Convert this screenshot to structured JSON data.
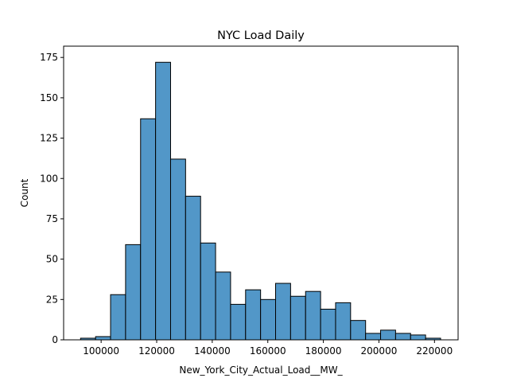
{
  "chart_data": {
    "type": "bar",
    "title": "NYC Load Daily",
    "xlabel": "New_York_City_Actual_Load__MW_",
    "ylabel": "Count",
    "xlim": [
      86500,
      228500
    ],
    "ylim": [
      0,
      182
    ],
    "bin_edges": [
      92600,
      98000,
      103400,
      108800,
      114200,
      119600,
      125000,
      130400,
      135800,
      141200,
      146600,
      152000,
      157400,
      162800,
      168200,
      173600,
      179000,
      184400,
      189800,
      195200,
      200600,
      206000,
      211400,
      216800,
      222200
    ],
    "counts": [
      1,
      2,
      28,
      59,
      137,
      172,
      112,
      89,
      60,
      42,
      22,
      31,
      25,
      35,
      27,
      30,
      19,
      23,
      12,
      4,
      6,
      4,
      3,
      1
    ],
    "x_ticks": [
      100000,
      120000,
      140000,
      160000,
      180000,
      200000,
      220000
    ],
    "x_tick_labels": [
      "100000",
      "120000",
      "140000",
      "160000",
      "180000",
      "200000",
      "220000"
    ],
    "y_ticks": [
      0,
      25,
      50,
      75,
      100,
      125,
      150,
      175
    ],
    "y_tick_labels": [
      "0",
      "25",
      "50",
      "75",
      "100",
      "125",
      "150",
      "175"
    ],
    "bar_color": "#5297c8",
    "edge_color": "#000000",
    "grid": false,
    "legend": "none"
  }
}
